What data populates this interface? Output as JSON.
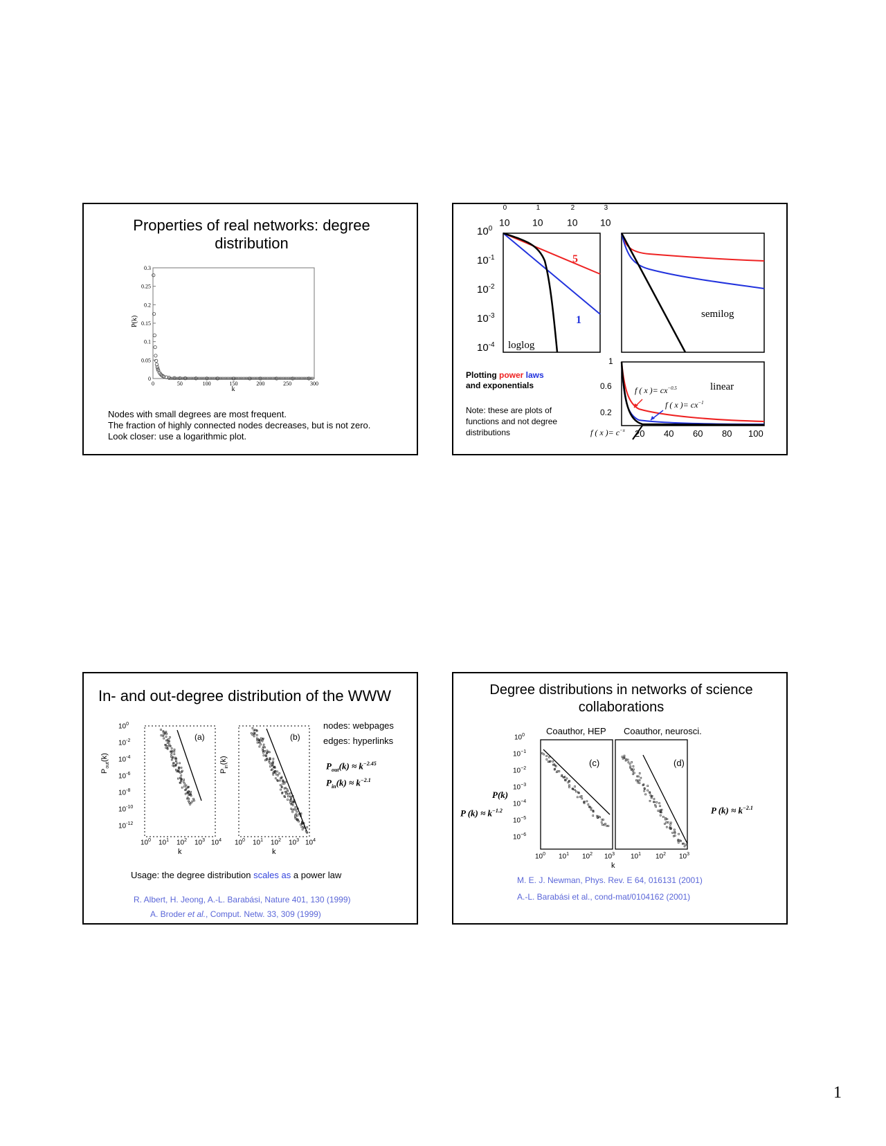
{
  "page_number": "1",
  "slide1": {
    "title": "Properties of real networks: degree distribution",
    "notes": [
      "Nodes with small degrees are most frequent.",
      "The fraction of highly connected nodes decreases, but is not zero.",
      "Look closer: use a logarithmic plot."
    ]
  },
  "slide2": {
    "heading_plotting": "Plotting ",
    "heading_power": "power",
    "heading_laws": " laws",
    "heading_line2": "and exponentials",
    "note": [
      "Note: these are plots of",
      "functions and not degree",
      "distributions"
    ],
    "label_loglog": "loglog",
    "label_semilog": "semilog",
    "label_linear": "linear",
    "label_red": "5",
    "label_blue": "1",
    "formula_red": "f ( x )= cx",
    "formula_red_exp": "−0.5",
    "formula_blue": "f ( x )= cx",
    "formula_blue_exp": "−1",
    "formula_black": "f ( x )= c",
    "formula_black_exp": "−x",
    "colors": {
      "red": "#ee2222",
      "blue": "#2233dd",
      "black": "#000000"
    }
  },
  "slide3": {
    "title": "In- and out-degree distribution of the WWW",
    "nodes": "nodes: webpages",
    "edges": "edges: hyperlinks",
    "formula_out": "P",
    "formula_out_sub": "out",
    "formula_out_rest": "(k) ≈ k",
    "formula_out_exp": "−2.45",
    "formula_in": "P",
    "formula_in_sub": "in",
    "formula_in_rest": "(k) ≈ k",
    "formula_in_exp": "−2.1",
    "usage_before": "Usage: the degree distribution ",
    "usage_hl": "scales as",
    "usage_after": " a power law",
    "ref1": "R. Albert, H. Jeong, A.-L. Barabási, Nature 401, 130 (1999)",
    "ref2_a": "A. Broder ",
    "ref2_b": "et al.",
    "ref2_c": ", Comput. Netw. 33, 309 (1999)",
    "panel_a": "(a)",
    "panel_b": "(b)",
    "ylabel_a": "P",
    "ylabel_a_sub": "out",
    "ylabel_a_rest": "(k)",
    "ylabel_b": "P",
    "ylabel_b_sub": "in",
    "ylabel_b_rest": "(k)",
    "xlabel": "k"
  },
  "slide4": {
    "title": "Degree distributions in networks of science collaborations",
    "sub_left": "Coauthor, HEP",
    "sub_right": "Coauthor, neurosci.",
    "panel_c": "(c)",
    "panel_d": "(d)",
    "ylabel": "P(k)",
    "xlabel": "k",
    "formula_left": "P (k) ≈ k",
    "formula_left_exp": "−1.2",
    "formula_right": "P (k) ≈ k",
    "formula_right_exp": "−2.1",
    "ref1": "M. E. J. Newman, Phys. Rev. E 64, 016131 (2001)",
    "ref2": "A.-L. Barabási et al., cond-mat/0104162 (2001)"
  },
  "chart_data": [
    {
      "type": "scatter",
      "xlabel": "k",
      "ylabel": "P(k)",
      "xlim": [
        0,
        300
      ],
      "ylim": [
        0,
        0.3
      ],
      "xticks": [
        "0",
        "50",
        "100",
        "150",
        "200",
        "250",
        "300"
      ],
      "yticks": [
        "0",
        "0.05",
        "0.1",
        "0.15",
        "0.2",
        "0.25",
        "0.3"
      ],
      "x": [
        1,
        2,
        3,
        4,
        5,
        6,
        7,
        8,
        9,
        10,
        12,
        14,
        16,
        18,
        20,
        25,
        30,
        40,
        50,
        60,
        80,
        100,
        120,
        150,
        180,
        200,
        230,
        260,
        290
      ],
      "y": [
        0.28,
        0.175,
        0.117,
        0.085,
        0.062,
        0.048,
        0.038,
        0.031,
        0.026,
        0.022,
        0.016,
        0.012,
        0.009,
        0.007,
        0.0055,
        0.0035,
        0.0025,
        0.0015,
        0.001,
        0.0007,
        0.0004,
        0.0003,
        0.0002,
        0.0001,
        0.0001,
        0.0001,
        0.0001,
        0.0001,
        0.0001
      ]
    },
    {
      "type": "line",
      "scale": "loglog",
      "xticks": [
        "10^0",
        "10^1",
        "10^2",
        "10^3"
      ],
      "yticks": [
        "10^0",
        "10^-1",
        "10^-2",
        "10^-3",
        "10^-4"
      ],
      "series": [
        {
          "name": "5",
          "function": "cx^-0.5",
          "color": "#ee2222"
        },
        {
          "name": "1",
          "function": "cx^-1",
          "color": "#2233dd"
        },
        {
          "function": "c^-x",
          "color": "#000000"
        }
      ]
    },
    {
      "type": "line",
      "scale": "semilog",
      "series": [
        {
          "function": "cx^-0.5",
          "color": "#ee2222"
        },
        {
          "function": "cx^-1",
          "color": "#2233dd"
        },
        {
          "function": "c^-x",
          "color": "#000000"
        }
      ]
    },
    {
      "type": "line",
      "scale": "linear",
      "xlim": [
        0,
        100
      ],
      "xticks": [
        "20",
        "40",
        "60",
        "80",
        "100"
      ],
      "yticks": [
        "1",
        "0.6",
        "0.2"
      ],
      "series": [
        {
          "function": "cx^-0.5",
          "color": "#ee2222"
        },
        {
          "function": "cx^-1",
          "color": "#2233dd"
        },
        {
          "function": "c^-x",
          "color": "#000000"
        }
      ]
    },
    {
      "type": "scatter",
      "scale": "loglog",
      "panels": [
        "(a)",
        "(b)"
      ],
      "xlabel": "k",
      "ylabels": [
        "Pout(k)",
        "Pin(k)"
      ],
      "fit_exponents": [
        -2.45,
        -2.1
      ]
    },
    {
      "type": "scatter",
      "scale": "loglog",
      "panels": [
        "(c)",
        "(d)"
      ],
      "xlabel": "k",
      "ylabel": "P(k)",
      "xticks": [
        "10^0",
        "10^1",
        "10^2",
        "10^3"
      ],
      "yticks": [
        "10^0",
        "10^-1",
        "10^-2",
        "10^-3",
        "10^-4",
        "10^-5",
        "10^-6"
      ],
      "fit_exponents": [
        -1.2,
        -2.1
      ]
    }
  ]
}
